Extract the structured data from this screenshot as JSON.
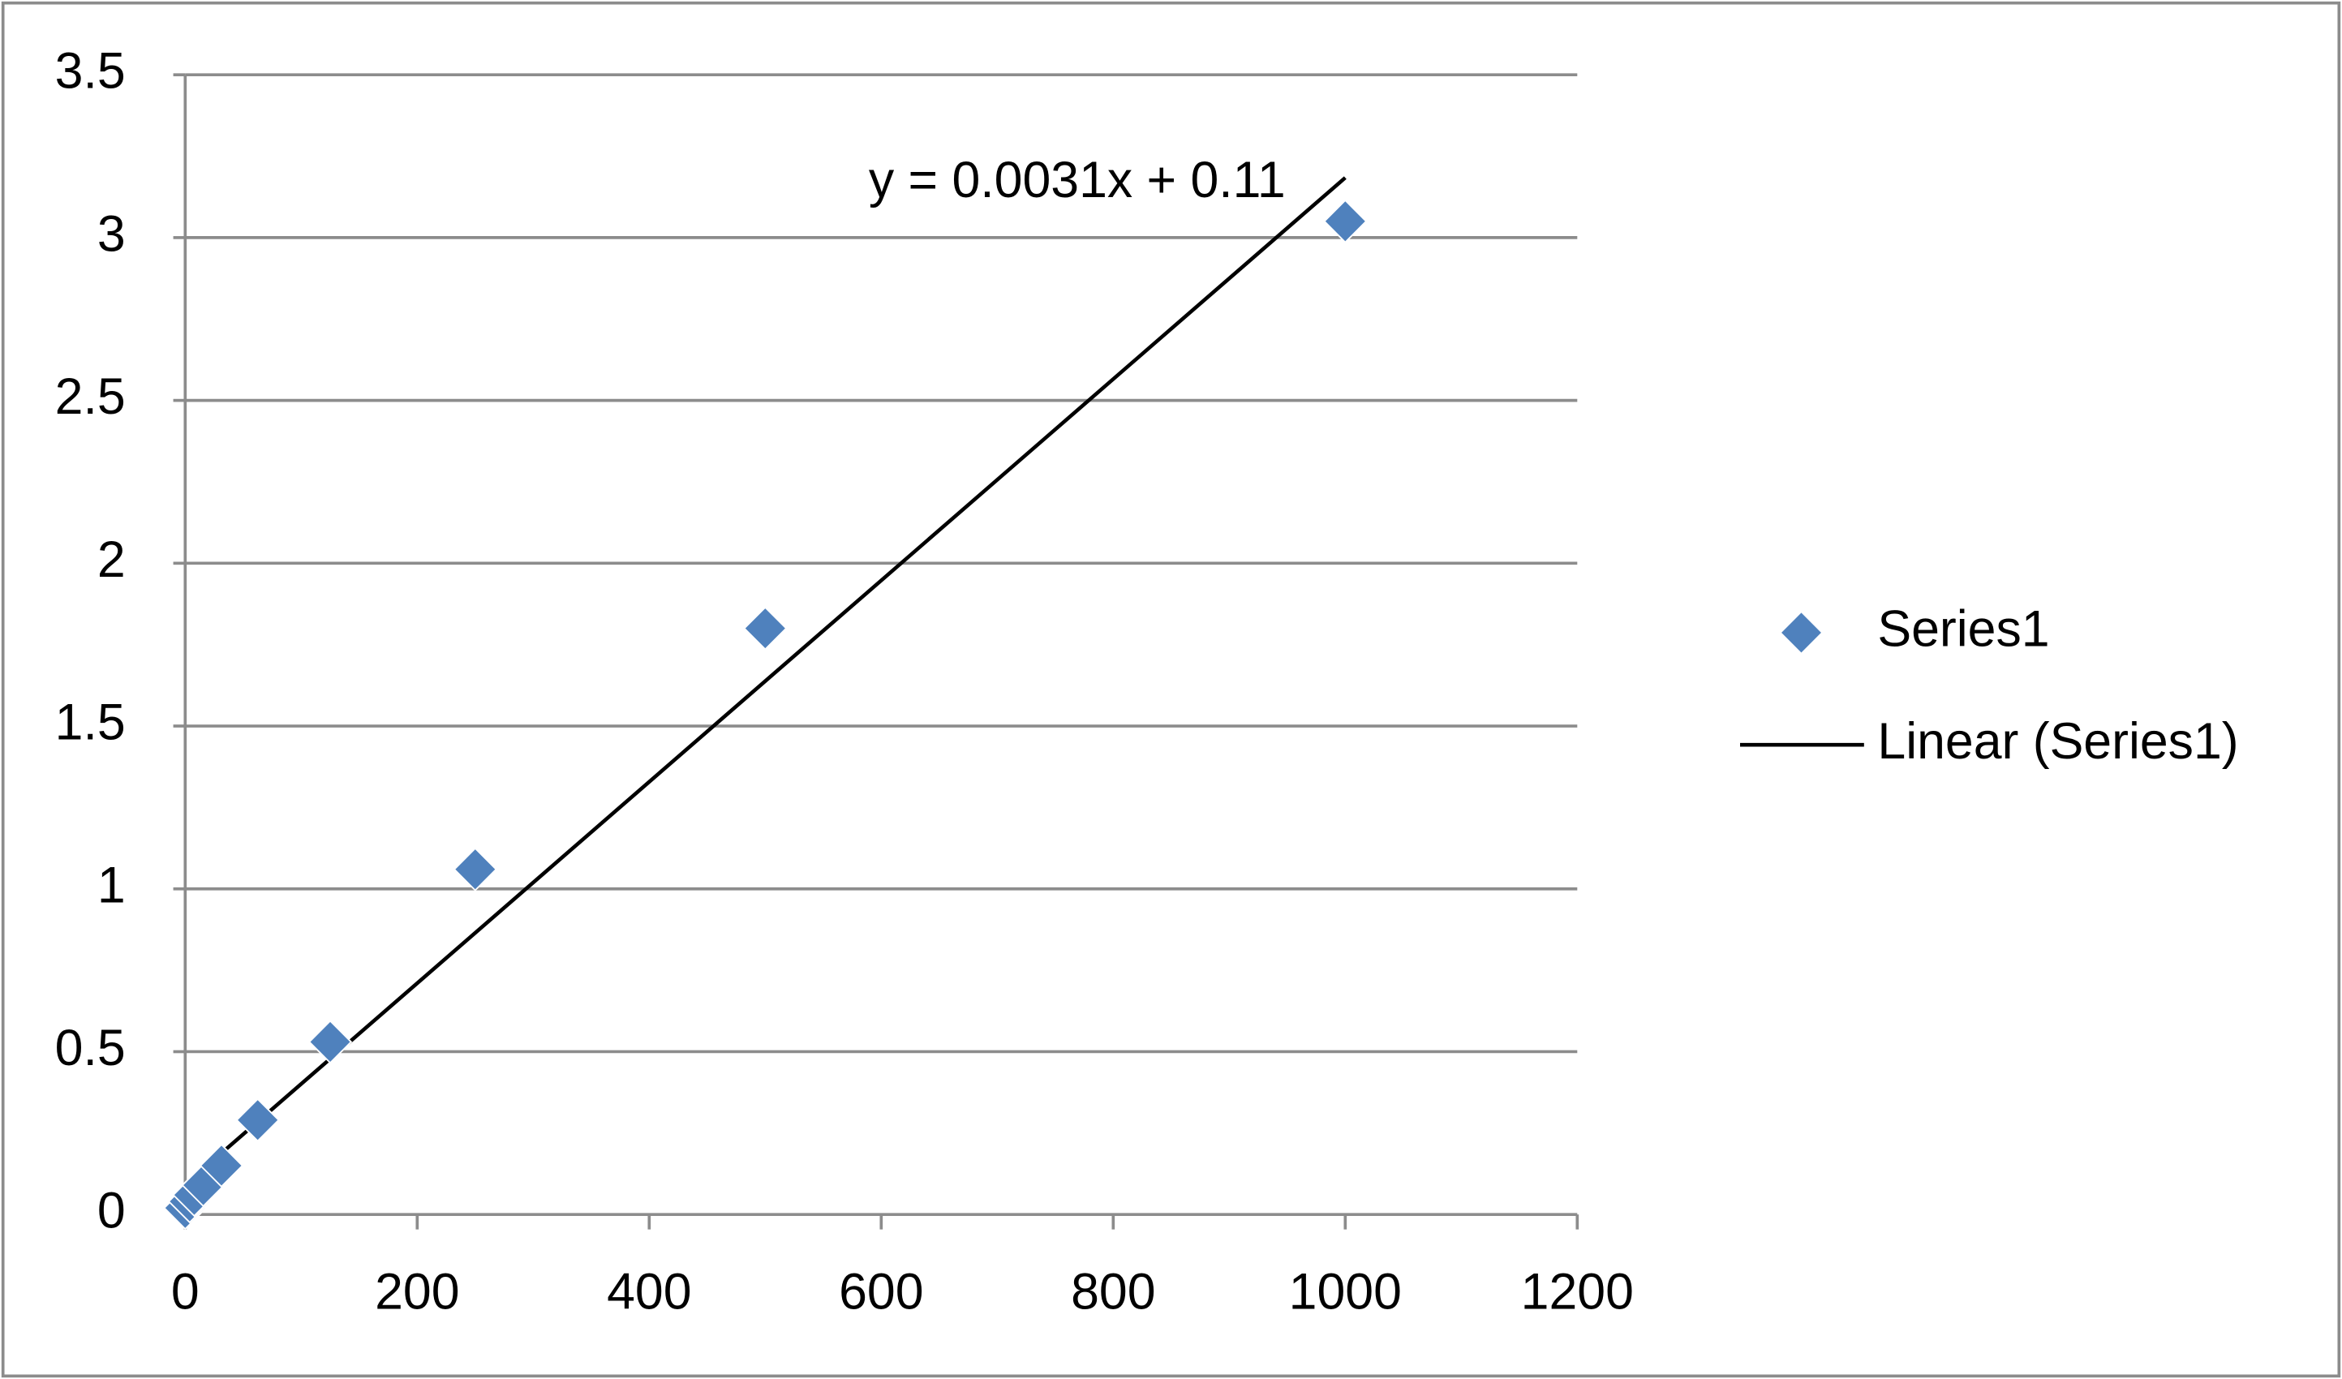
{
  "chart_data": {
    "type": "scatter",
    "series": [
      {
        "name": "Series1",
        "color": "#4f81bd",
        "x": [
          0,
          3.9,
          7.8,
          15.6,
          31.25,
          62.5,
          125,
          250,
          500,
          1000
        ],
        "values": [
          0.02,
          0.04,
          0.06,
          0.09,
          0.15,
          0.29,
          0.53,
          1.06,
          1.8,
          3.05
        ]
      }
    ],
    "trendline": {
      "name": "Linear (Series1)",
      "equation": "y = 0.0031x + 0.11",
      "color": "#000000"
    },
    "xlim": [
      0,
      1200
    ],
    "xticks": [
      0,
      200,
      400,
      600,
      800,
      1000,
      1200
    ],
    "ylim": [
      0,
      3.5
    ],
    "yticks": [
      0,
      0.5,
      1,
      1.5,
      2,
      2.5,
      3,
      3.5
    ],
    "grid": true,
    "legend": "right"
  }
}
